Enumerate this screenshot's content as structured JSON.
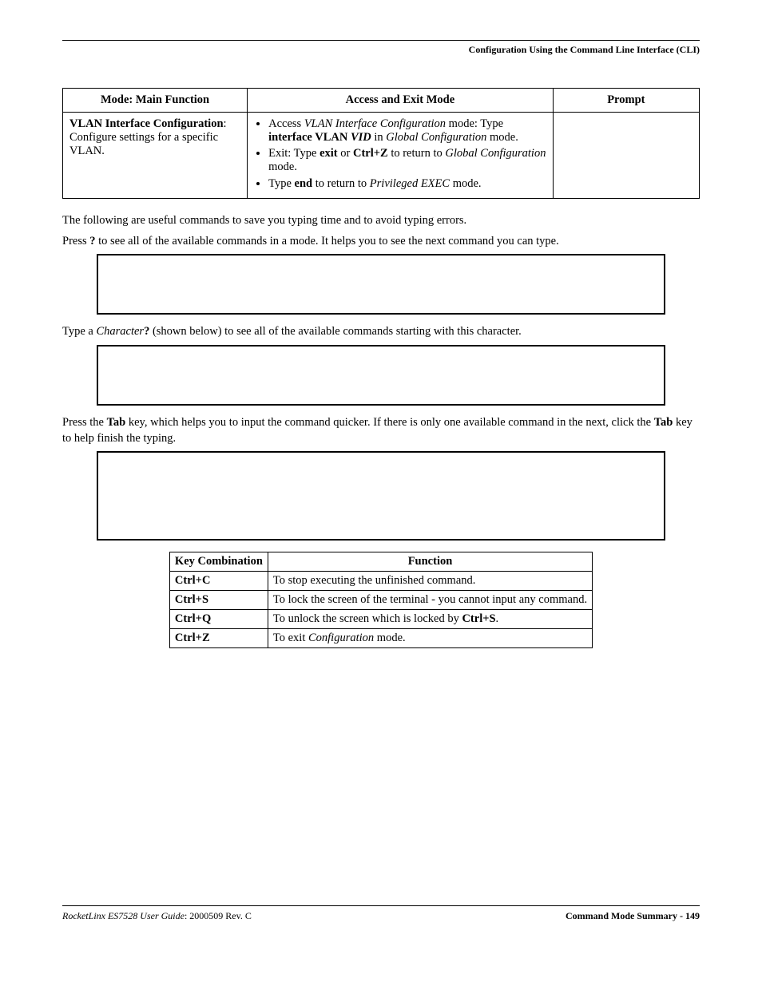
{
  "header": {
    "title": "Configuration Using the Command Line Interface (CLI)"
  },
  "modes_table": {
    "columns": [
      "Mode: Main Function",
      "Access and Exit Mode",
      "Prompt"
    ],
    "row": {
      "col1_bold": "VLAN Interface Configuration",
      "col1_rest": ": Configure settings for a specific VLAN.",
      "b1_pre": "Access ",
      "b1_i1": "VLAN Interface Configuration",
      "b1_mid": " mode: Type ",
      "b1_bold": "interface VLAN ",
      "b1_bi": "VID",
      "b1_mid2": " in ",
      "b1_i2": "Global Configuration",
      "b1_end": " mode.",
      "b2_pre": "Exit: Type ",
      "b2_b1": "exit",
      "b2_mid1": " or ",
      "b2_b2": "Ctrl+Z",
      "b2_mid2": " to return to ",
      "b2_i": "Global Configuration",
      "b2_end": " mode.",
      "b3_pre": "Type ",
      "b3_b": "end",
      "b3_mid": " to return to ",
      "b3_i": "Privileged EXEC",
      "b3_end": " mode."
    }
  },
  "para1": "The following are useful commands to save you typing time and to avoid typing errors.",
  "para2_pre": "Press ",
  "para2_b": "?",
  "para2_rest": " to see all of the available commands in a mode. It helps you to see the next command you can type.",
  "para3_pre": "Type a ",
  "para3_i": "Character",
  "para3_b": "?",
  "para3_rest": " (shown below) to see all of the available commands starting with this character.",
  "para4_pre": "Press the ",
  "para4_b1": "Tab",
  "para4_mid": " key, which helps you to input the command quicker. If there is only one available command in the next, click the ",
  "para4_b2": "Tab",
  "para4_end": " key to help finish the typing.",
  "keys_table": {
    "columns": [
      "Key Combination",
      "Function"
    ],
    "rows": [
      {
        "k": "Ctrl+C",
        "f": "To stop executing the unfinished command."
      },
      {
        "k": "Ctrl+S",
        "f": "To lock the screen of the terminal - you cannot input any command."
      },
      {
        "k": "Ctrl+Q",
        "f_pre": "To unlock the screen which is locked by ",
        "f_b": "Ctrl+S",
        "f_end": "."
      },
      {
        "k": "Ctrl+Z",
        "f_pre": "To exit ",
        "f_i": "Configuration",
        "f_end": " mode."
      }
    ]
  },
  "footer": {
    "left_i": "RocketLinx ES7528  User Guide",
    "left_rev": ": 2000509 Rev. C",
    "right": "Command Mode Summary - 149"
  }
}
